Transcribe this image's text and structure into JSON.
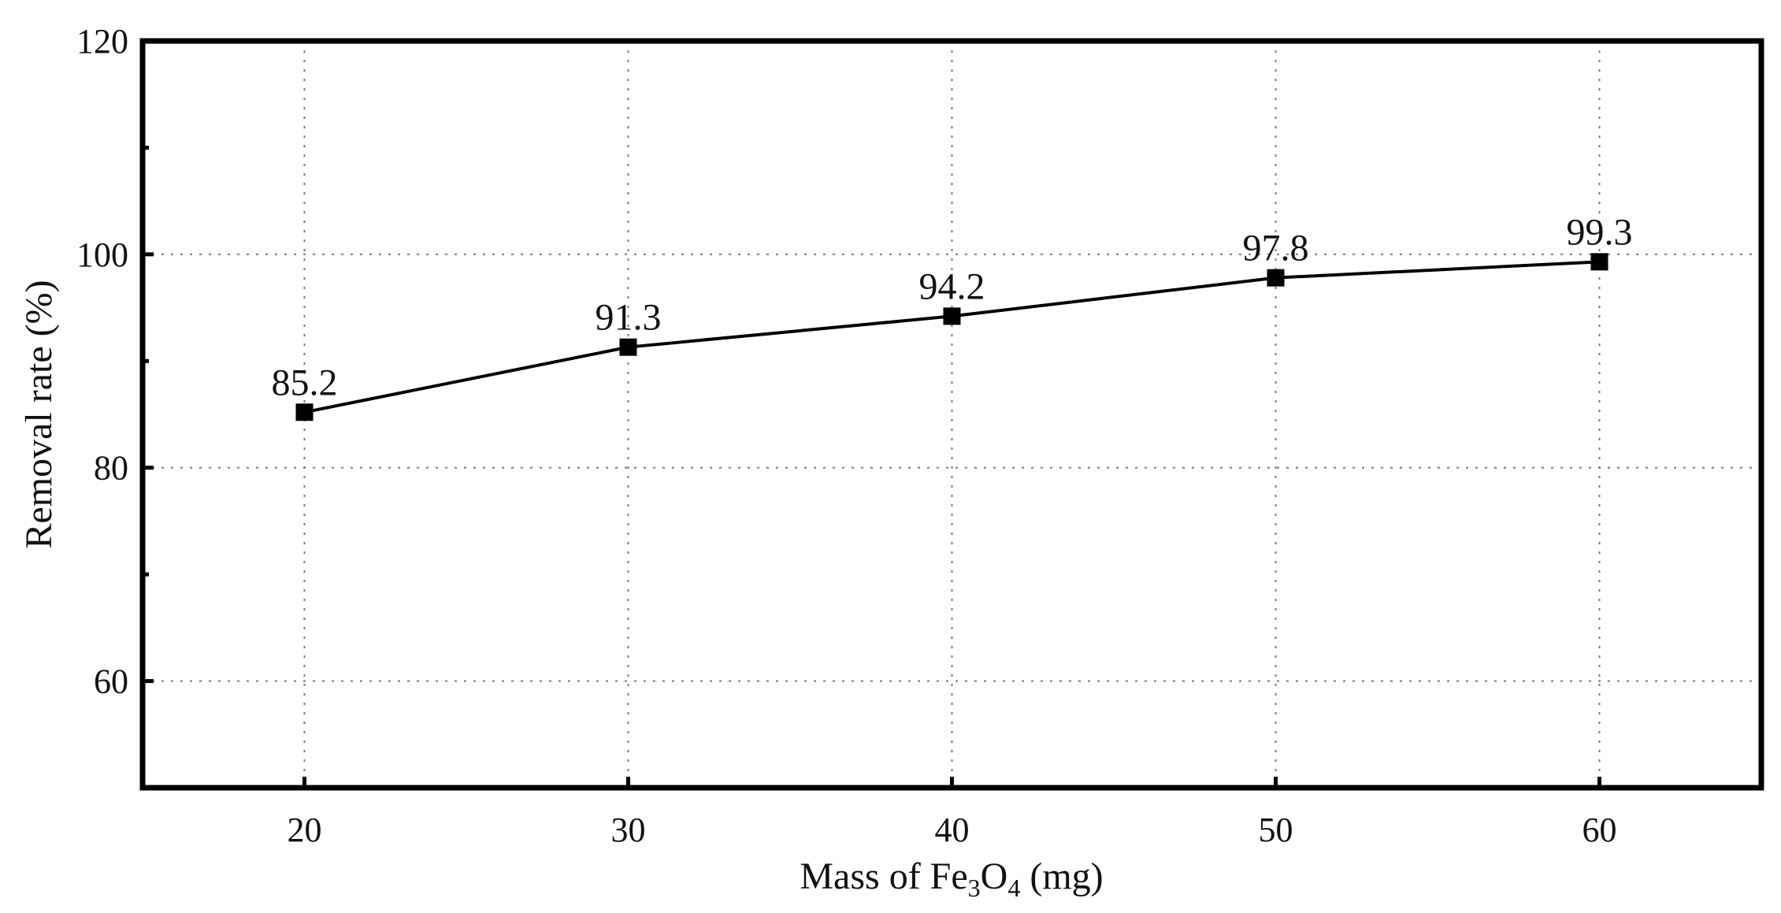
{
  "chart_data": {
    "type": "line",
    "title": "",
    "xlabel_parts": {
      "prefix": "Mass of Fe",
      "sub1": "3",
      "mid": "O",
      "sub2": "4",
      "suffix": " (mg)"
    },
    "ylabel": "Removal rate (%)",
    "x": [
      20,
      30,
      40,
      50,
      60
    ],
    "y": [
      85.2,
      91.3,
      94.2,
      97.8,
      99.3
    ],
    "data_labels": [
      "85.2",
      "91.3",
      "94.2",
      "97.8",
      "99.3"
    ],
    "xlim": [
      15,
      65
    ],
    "ylim": [
      50,
      120
    ],
    "x_ticks": [
      20,
      30,
      40,
      50,
      60
    ],
    "y_ticks": [
      60,
      80,
      100,
      120
    ],
    "y_minor_ticks": [
      70,
      90,
      110
    ],
    "grid": true,
    "marker": "square",
    "line_color": "#000000"
  }
}
